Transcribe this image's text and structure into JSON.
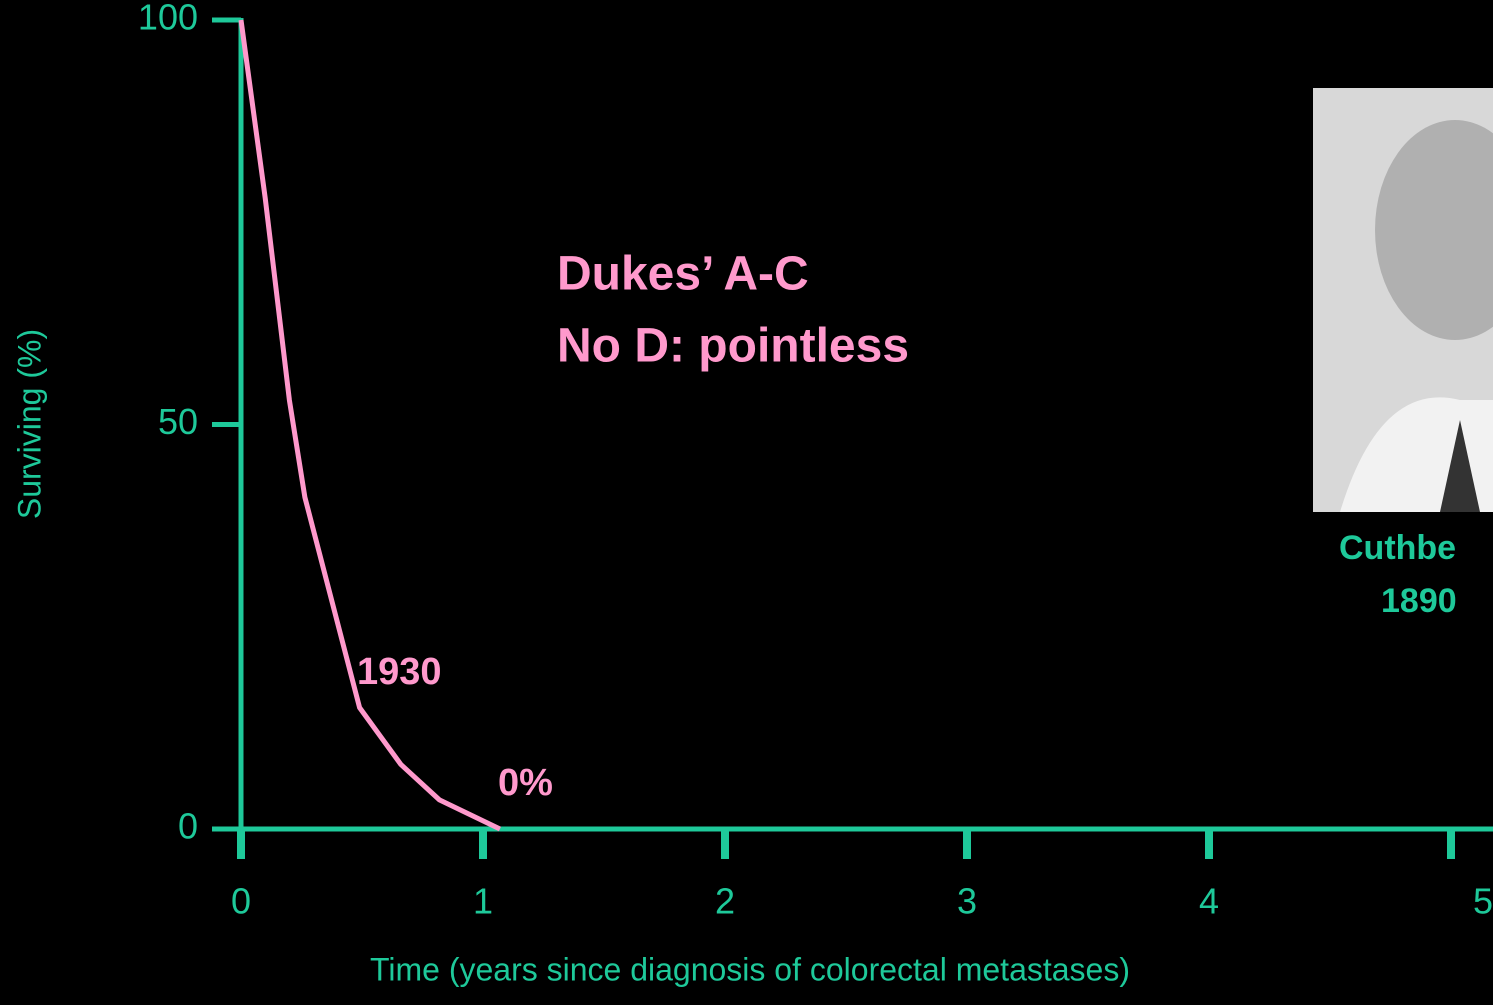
{
  "chart_data": {
    "type": "line",
    "ylabel": "Surviving (%)",
    "xlabel": "Time (years since diagnosis of colorectal metastases)",
    "x": [
      0,
      0.1,
      0.2,
      0.264,
      0.49,
      0.66,
      0.82,
      1.07
    ],
    "series": [
      {
        "name": "1930",
        "color": "#ff99cc",
        "values": [
          100,
          78,
          53,
          41,
          15,
          8,
          3.6,
          0
        ]
      }
    ],
    "xlim": [
      0,
      5
    ],
    "xticks": [
      0,
      1,
      2,
      3,
      4,
      5
    ],
    "ylim": [
      0,
      100
    ],
    "yticks": [
      0,
      50,
      100
    ],
    "axis_color": "#1ec99a",
    "annotations": [
      "Dukes’ A-C",
      "No D: pointless",
      "0%",
      "Cuthbe",
      "1890"
    ]
  }
}
